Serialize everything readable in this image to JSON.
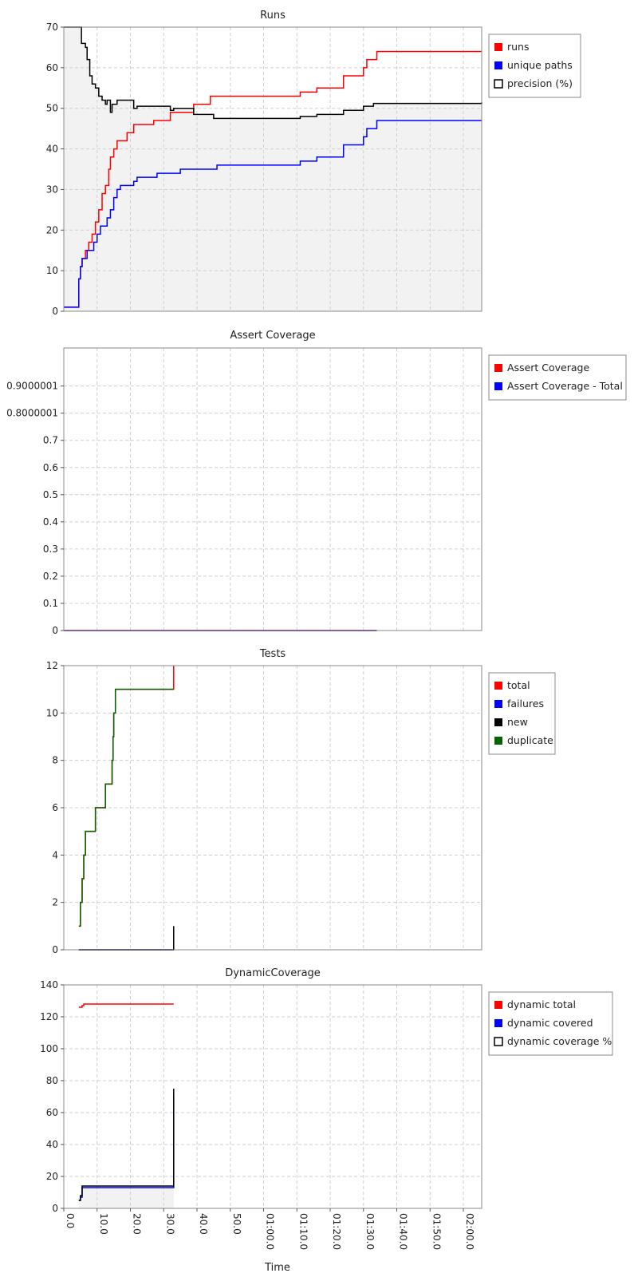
{
  "x_axis": {
    "label": "Time",
    "tick_labels": [
      "0.0",
      "10.0",
      "20.0",
      "30.0",
      "40.0",
      "50.0",
      "01:00.0",
      "01:10.0",
      "01:20.0",
      "01:30.0",
      "01:40.0",
      "01:50.0",
      "02:00.0"
    ],
    "tick_values": [
      0,
      10,
      20,
      30,
      40,
      50,
      60,
      70,
      80,
      90,
      100,
      110,
      120
    ],
    "xlim": [
      0,
      125.5
    ]
  },
  "chart_data": [
    {
      "type": "line",
      "title": "Runs",
      "ylim": [
        0,
        70
      ],
      "yticks": [
        0,
        10,
        20,
        30,
        40,
        50,
        60,
        70
      ],
      "ytick_labels": [
        "0",
        "10",
        "20",
        "30",
        "40",
        "50",
        "60",
        "70"
      ],
      "grid": true,
      "legend_position": "top-right",
      "series": [
        {
          "name": "runs",
          "color": "#ff0000",
          "style": "step",
          "points": [
            [
              0,
              1
            ],
            [
              4,
              1
            ],
            [
              4.5,
              8
            ],
            [
              5,
              11
            ],
            [
              5.5,
              13
            ],
            [
              6.5,
              15
            ],
            [
              7.5,
              17
            ],
            [
              8.5,
              19
            ],
            [
              9.5,
              22
            ],
            [
              10.5,
              25
            ],
            [
              11.5,
              29
            ],
            [
              12.5,
              31
            ],
            [
              13.5,
              35
            ],
            [
              14,
              38
            ],
            [
              15,
              40
            ],
            [
              16,
              42
            ],
            [
              19,
              44
            ],
            [
              21,
              46
            ],
            [
              27,
              47
            ],
            [
              32,
              49
            ],
            [
              38,
              49
            ],
            [
              39,
              51
            ],
            [
              44,
              53
            ],
            [
              71,
              54
            ],
            [
              76,
              55
            ],
            [
              84,
              58
            ],
            [
              90,
              60
            ],
            [
              91,
              62
            ],
            [
              94,
              64
            ],
            [
              125.5,
              64
            ]
          ]
        },
        {
          "name": "unique paths",
          "color": "#0000ff",
          "style": "step",
          "points": [
            [
              0,
              1
            ],
            [
              4,
              1
            ],
            [
              4.5,
              8
            ],
            [
              5,
              11
            ],
            [
              5.5,
              13
            ],
            [
              7,
              15
            ],
            [
              9,
              17
            ],
            [
              10,
              19
            ],
            [
              11,
              21
            ],
            [
              13,
              23
            ],
            [
              14,
              25
            ],
            [
              15,
              28
            ],
            [
              16,
              30
            ],
            [
              17,
              31
            ],
            [
              21,
              32
            ],
            [
              22,
              33
            ],
            [
              28,
              34
            ],
            [
              35,
              35
            ],
            [
              46,
              36
            ],
            [
              71,
              37
            ],
            [
              76,
              38
            ],
            [
              84,
              41
            ],
            [
              90,
              43
            ],
            [
              91,
              45
            ],
            [
              94,
              47
            ],
            [
              125.5,
              47
            ]
          ]
        },
        {
          "name": "precision (%)",
          "color": "#000000",
          "style": "step",
          "fill": "#f2f2f2",
          "points": [
            [
              0,
              70
            ],
            [
              5,
              70
            ],
            [
              5.3,
              66
            ],
            [
              6.5,
              65
            ],
            [
              7,
              62
            ],
            [
              7.8,
              58
            ],
            [
              8.5,
              56
            ],
            [
              9.5,
              55
            ],
            [
              10.5,
              53
            ],
            [
              11.5,
              52
            ],
            [
              12.5,
              51
            ],
            [
              13,
              52
            ],
            [
              14,
              49
            ],
            [
              14.5,
              51
            ],
            [
              16,
              52
            ],
            [
              20,
              52
            ],
            [
              21,
              50
            ],
            [
              22,
              50.5
            ],
            [
              28,
              50.5
            ],
            [
              32,
              49.5
            ],
            [
              33,
              50
            ],
            [
              39,
              48.5
            ],
            [
              45,
              47.5
            ],
            [
              71,
              48
            ],
            [
              76,
              48.5
            ],
            [
              84,
              49.5
            ],
            [
              90,
              50.5
            ],
            [
              93,
              51.2
            ],
            [
              125.5,
              51.5
            ]
          ]
        }
      ]
    },
    {
      "type": "line",
      "title": "Assert Coverage",
      "ylim": [
        0,
        1.04
      ],
      "yticks": [
        0,
        0.1,
        0.2,
        0.3,
        0.4,
        0.5,
        0.6,
        0.7,
        0.8,
        0.9
      ],
      "ytick_labels": [
        "0",
        "0.1",
        "0.2",
        "0.3",
        "0.4",
        "0.5",
        "0.6",
        "0.7",
        "0.8000001",
        "0.9000001"
      ],
      "grid": true,
      "legend_position": "top-right",
      "series": [
        {
          "name": "Assert Coverage",
          "color": "#ff0000",
          "style": "step",
          "points": [
            [
              0,
              0
            ],
            [
              94,
              0
            ]
          ]
        },
        {
          "name": "Assert Coverage - Total",
          "color": "#0000ff",
          "style": "step",
          "points": [
            [
              0,
              0
            ],
            [
              94,
              0
            ]
          ]
        }
      ]
    },
    {
      "type": "line",
      "title": "Tests",
      "ylim": [
        0,
        12
      ],
      "yticks": [
        0,
        2,
        4,
        6,
        8,
        10,
        12
      ],
      "ytick_labels": [
        "0",
        "2",
        "4",
        "6",
        "8",
        "10",
        "12"
      ],
      "grid": true,
      "legend_position": "top-right",
      "series": [
        {
          "name": "total",
          "color": "#ff0000",
          "style": "step",
          "points": [
            [
              4.5,
              1
            ],
            [
              5,
              2
            ],
            [
              5.5,
              3
            ],
            [
              6,
              4
            ],
            [
              6.5,
              5
            ],
            [
              9.5,
              6
            ],
            [
              12.5,
              7
            ],
            [
              14.5,
              8
            ],
            [
              14.8,
              9
            ],
            [
              15,
              10
            ],
            [
              15.5,
              11
            ],
            [
              33,
              11
            ],
            [
              33,
              12
            ]
          ]
        },
        {
          "name": "failures",
          "color": "#0000ff",
          "style": "step",
          "points": [
            [
              4.5,
              0
            ],
            [
              33,
              0
            ]
          ]
        },
        {
          "name": "new",
          "color": "#000000",
          "style": "step",
          "points": [
            [
              4.5,
              0
            ],
            [
              33,
              0
            ],
            [
              33,
              1
            ]
          ]
        },
        {
          "name": "duplicate",
          "color": "#006400",
          "style": "step",
          "points": [
            [
              4.5,
              1
            ],
            [
              5,
              2
            ],
            [
              5.5,
              3
            ],
            [
              6,
              4
            ],
            [
              6.5,
              5
            ],
            [
              9.5,
              6
            ],
            [
              12.5,
              7
            ],
            [
              14.5,
              8
            ],
            [
              14.8,
              9
            ],
            [
              15,
              10
            ],
            [
              15.5,
              11
            ],
            [
              33,
              11
            ]
          ]
        }
      ]
    },
    {
      "type": "line",
      "title": "DynamicCoverage",
      "ylim": [
        0,
        140
      ],
      "yticks": [
        0,
        20,
        40,
        60,
        80,
        100,
        120,
        140
      ],
      "ytick_labels": [
        "0",
        "20",
        "40",
        "60",
        "80",
        "100",
        "120",
        "140"
      ],
      "grid": true,
      "legend_position": "top-right",
      "series": [
        {
          "name": "dynamic total",
          "color": "#ff0000",
          "style": "step",
          "points": [
            [
              4.5,
              126
            ],
            [
              5.5,
              127
            ],
            [
              6,
              128
            ],
            [
              33,
              128
            ]
          ]
        },
        {
          "name": "dynamic covered",
          "color": "#0000ff",
          "style": "step",
          "points": [
            [
              4.5,
              5
            ],
            [
              5,
              7
            ],
            [
              5.5,
              13
            ],
            [
              33,
              13
            ],
            [
              33,
              70
            ]
          ]
        },
        {
          "name": "dynamic coverage %",
          "color": "#000000",
          "style": "step",
          "fill": "#f2f2f2",
          "points": [
            [
              4.5,
              5
            ],
            [
              5,
              8
            ],
            [
              5.5,
              14
            ],
            [
              33,
              14
            ],
            [
              33,
              75
            ]
          ]
        }
      ]
    }
  ]
}
